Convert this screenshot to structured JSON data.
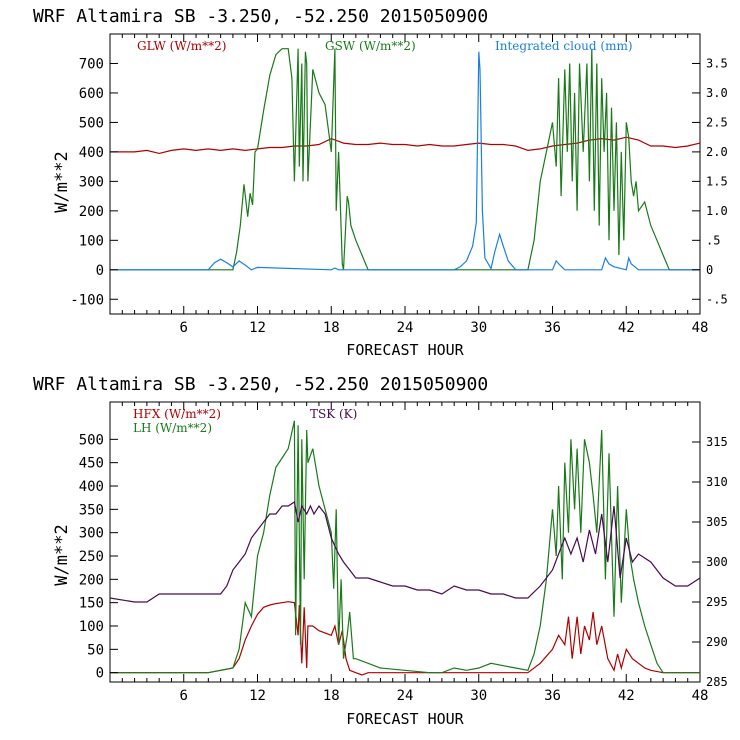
{
  "chart_data": [
    {
      "type": "line",
      "title": "WRF   Altamira   SB   -3.250,  -52.250   2015050900",
      "xlabel": "FORECAST HOUR",
      "ylabel": "W/m**2",
      "xlim": [
        0,
        48
      ],
      "ylim": [
        -150,
        800
      ],
      "y2lim": [
        -0.75,
        4.0
      ],
      "xticks": [
        6,
        12,
        18,
        24,
        30,
        36,
        42,
        48
      ],
      "yticks": [
        -100,
        0,
        100,
        200,
        300,
        400,
        500,
        600,
        700
      ],
      "y2ticks": [
        -0.5,
        0,
        0.5,
        1.0,
        1.5,
        2.0,
        2.5,
        3.0,
        3.5
      ],
      "y2tick_labels": [
        "-.5",
        "0",
        ".5",
        "1.0",
        "1.5",
        "2.0",
        "2.5",
        "3.0",
        "3.5"
      ],
      "series": [
        {
          "name": "GLW (W/m**2)",
          "axis": "left",
          "color": "#b00000",
          "x": [
            0,
            2,
            3,
            4,
            5,
            6,
            7,
            8,
            9,
            10,
            11,
            12,
            13,
            14,
            15,
            16,
            17,
            18,
            19,
            20,
            21,
            22,
            23,
            24,
            25,
            26,
            27,
            28,
            29,
            30,
            31,
            32,
            33,
            34,
            35,
            36,
            37,
            38,
            39,
            40,
            41,
            42,
            43,
            44,
            45,
            46,
            47,
            48
          ],
          "y": [
            400,
            400,
            405,
            395,
            405,
            410,
            405,
            410,
            405,
            410,
            405,
            410,
            415,
            415,
            420,
            420,
            425,
            445,
            430,
            425,
            425,
            430,
            425,
            425,
            420,
            425,
            420,
            420,
            425,
            430,
            425,
            425,
            420,
            405,
            410,
            420,
            425,
            430,
            440,
            445,
            440,
            450,
            440,
            420,
            420,
            415,
            420,
            430
          ]
        },
        {
          "name": "GSW (W/m**2)",
          "axis": "left",
          "color": "#1a7a1a",
          "x": [
            0,
            10,
            10.3,
            10.6,
            10.9,
            11.2,
            11.4,
            11.6,
            11.8,
            12,
            12.5,
            13,
            13.5,
            14,
            14.5,
            14.8,
            15,
            15.3,
            15.4,
            15.6,
            15.7,
            15.9,
            16.0,
            16.1,
            16.5,
            17,
            17.5,
            18,
            18.3,
            18.4,
            18.6,
            18.9,
            19.0,
            19.3,
            19.4,
            19.6,
            20,
            20.5,
            21,
            21.3,
            34,
            34.5,
            35,
            35.5,
            36,
            36.3,
            36.5,
            36.7,
            37,
            37.2,
            37.4,
            37.6,
            37.8,
            38,
            38.2,
            38.5,
            38.8,
            39,
            39.2,
            39.4,
            39.6,
            39.8,
            40,
            40.2,
            40.4,
            40.6,
            40.8,
            41,
            41.2,
            41.4,
            41.6,
            41.8,
            42,
            42.2,
            42.4,
            42.6,
            42.8,
            43,
            43.5,
            44,
            44.5,
            45,
            45.5,
            48
          ],
          "y": [
            0,
            0,
            60,
            150,
            290,
            180,
            260,
            220,
            400,
            410,
            540,
            660,
            730,
            750,
            750,
            650,
            300,
            750,
            350,
            700,
            300,
            740,
            700,
            300,
            680,
            600,
            560,
            400,
            750,
            200,
            400,
            20,
            0,
            250,
            230,
            150,
            100,
            50,
            0,
            0,
            0,
            100,
            300,
            400,
            500,
            350,
            650,
            250,
            680,
            400,
            700,
            300,
            600,
            200,
            700,
            400,
            700,
            300,
            750,
            200,
            700,
            150,
            650,
            400,
            600,
            100,
            550,
            200,
            500,
            50,
            400,
            100,
            500,
            450,
            300,
            250,
            300,
            200,
            230,
            150,
            100,
            50,
            0,
            0
          ]
        },
        {
          "name": "Integrated cloud (mm)",
          "axis": "right",
          "color": "#1a80e0",
          "x": [
            0,
            8,
            8.5,
            9,
            9.5,
            10,
            10.5,
            11,
            11.5,
            12,
            18,
            18.3,
            18.6,
            19,
            28,
            28.5,
            29,
            29.5,
            29.8,
            30,
            30.1,
            30.3,
            30.5,
            31,
            31.3,
            31.7,
            32,
            32.4,
            32.8,
            33,
            36,
            36.3,
            36.6,
            37,
            40,
            40.3,
            40.6,
            41,
            42,
            42.2,
            42.4,
            42.7,
            43,
            48
          ],
          "y": [
            0,
            0,
            0.12,
            0.18,
            0.12,
            0.05,
            0.15,
            0.08,
            0,
            0.04,
            0,
            0.03,
            0,
            0,
            0,
            0.05,
            0.15,
            0.4,
            0.8,
            3.7,
            3.4,
            1.0,
            0.2,
            0.02,
            0.3,
            0.6,
            0.4,
            0.15,
            0.05,
            0,
            0,
            0.15,
            0.08,
            0,
            0,
            0.2,
            0.1,
            0.05,
            0,
            0.2,
            0.1,
            0.05,
            0,
            0
          ]
        }
      ]
    },
    {
      "type": "line",
      "title": "WRF   Altamira   SB   -3.250,  -52.250   2015050900",
      "xlabel": "FORECAST HOUR",
      "ylabel": "W/m**2",
      "xlim": [
        0,
        48
      ],
      "ylim": [
        -20,
        580
      ],
      "y2lim": [
        285,
        320
      ],
      "xticks": [
        6,
        12,
        18,
        24,
        30,
        36,
        42,
        48
      ],
      "yticks": [
        0,
        50,
        100,
        150,
        200,
        250,
        300,
        350,
        400,
        450,
        500
      ],
      "y2ticks": [
        285,
        290,
        295,
        300,
        305,
        310,
        315
      ],
      "series": [
        {
          "name": "HFX (W/m**2)",
          "axis": "left",
          "color": "#b00000",
          "x": [
            0,
            8,
            9,
            10,
            10.5,
            11,
            11.5,
            12,
            12.5,
            13,
            13.5,
            14,
            14.5,
            15,
            15.3,
            15.4,
            15.6,
            15.8,
            16,
            16.1,
            16.5,
            17,
            18,
            18.3,
            18.6,
            18.9,
            19.2,
            19.5,
            20,
            20.5,
            21,
            22,
            34,
            35,
            36,
            36.5,
            37,
            37.3,
            37.6,
            38,
            38.3,
            38.6,
            39,
            39.3,
            39.6,
            40,
            40.5,
            41,
            41.3,
            41.6,
            42,
            42.5,
            43,
            43.5,
            44,
            45,
            48
          ],
          "y": [
            0,
            0,
            5,
            10,
            30,
            70,
            100,
            125,
            140,
            145,
            148,
            150,
            152,
            150,
            80,
            145,
            20,
            140,
            10,
            100,
            100,
            90,
            80,
            100,
            60,
            90,
            30,
            5,
            0,
            -5,
            0,
            0,
            0,
            20,
            50,
            80,
            60,
            120,
            30,
            120,
            40,
            100,
            70,
            130,
            60,
            100,
            30,
            5,
            40,
            10,
            50,
            30,
            20,
            10,
            5,
            0,
            0
          ]
        },
        {
          "name": "LH (W/m**2)",
          "axis": "left",
          "color": "#1a7a1a",
          "x": [
            0,
            8,
            9,
            10,
            10.5,
            11,
            11.5,
            12,
            12.5,
            13,
            13.5,
            14,
            14.5,
            15,
            15.1,
            15.3,
            15.5,
            15.6,
            15.8,
            16,
            16.1,
            16.5,
            17,
            17.5,
            18,
            18.2,
            18.4,
            18.6,
            18.8,
            19,
            19.3,
            19.5,
            19.8,
            20,
            21,
            22,
            26,
            27,
            28,
            29,
            30,
            31,
            32,
            33,
            34,
            34.5,
            35,
            35.5,
            36,
            36.3,
            36.5,
            36.8,
            37,
            37.3,
            37.5,
            37.8,
            38,
            38.3,
            38.6,
            39,
            39.3,
            39.6,
            40,
            40.3,
            40.6,
            41,
            41.3,
            41.6,
            42,
            42.3,
            42.6,
            43,
            43.5,
            44,
            44.5,
            45,
            48
          ],
          "y": [
            0,
            0,
            5,
            10,
            50,
            150,
            120,
            250,
            300,
            380,
            440,
            460,
            480,
            540,
            80,
            530,
            60,
            500,
            200,
            520,
            450,
            480,
            400,
            350,
            300,
            180,
            350,
            60,
            200,
            30,
            80,
            130,
            30,
            30,
            20,
            10,
            0,
            0,
            10,
            5,
            10,
            20,
            15,
            10,
            5,
            40,
            100,
            200,
            350,
            250,
            400,
            200,
            450,
            300,
            500,
            350,
            480,
            300,
            500,
            450,
            380,
            300,
            520,
            200,
            470,
            120,
            400,
            150,
            350,
            250,
            200,
            150,
            100,
            60,
            20,
            0,
            0
          ]
        },
        {
          "name": "TSK (K)",
          "axis": "right",
          "color": "#4a0a50",
          "x": [
            0,
            2,
            3,
            4,
            5,
            6,
            7,
            8,
            9,
            9.5,
            10,
            10.5,
            11,
            11.5,
            12,
            12.5,
            13,
            13.5,
            14,
            14.5,
            15,
            15.3,
            15.6,
            16,
            16.3,
            16.6,
            17,
            17.5,
            18,
            18.3,
            18.6,
            19,
            19.5,
            20,
            21,
            22,
            23,
            24,
            25,
            26,
            27,
            28,
            29,
            30,
            31,
            32,
            33,
            34,
            35,
            36,
            36.5,
            37,
            37.5,
            38,
            38.5,
            39,
            39.5,
            40,
            40.5,
            41,
            41.5,
            42,
            42.5,
            43,
            44,
            45,
            46,
            47,
            48
          ],
          "y": [
            295.5,
            295,
            295,
            296,
            296,
            296,
            296,
            296,
            296,
            297,
            299,
            300,
            301,
            303,
            304,
            305,
            306,
            306,
            307,
            307,
            307.5,
            305,
            307,
            306,
            307,
            306,
            307,
            306,
            303,
            302,
            301,
            300,
            299,
            298,
            298,
            297.5,
            297,
            297,
            296.5,
            296.5,
            296,
            297,
            296.5,
            296.5,
            296,
            296,
            295.5,
            295.5,
            297,
            299,
            301,
            303,
            301,
            303,
            300,
            304,
            301,
            306,
            300,
            307,
            298,
            303,
            300,
            301,
            300,
            298,
            297,
            297,
            298
          ]
        }
      ]
    }
  ]
}
